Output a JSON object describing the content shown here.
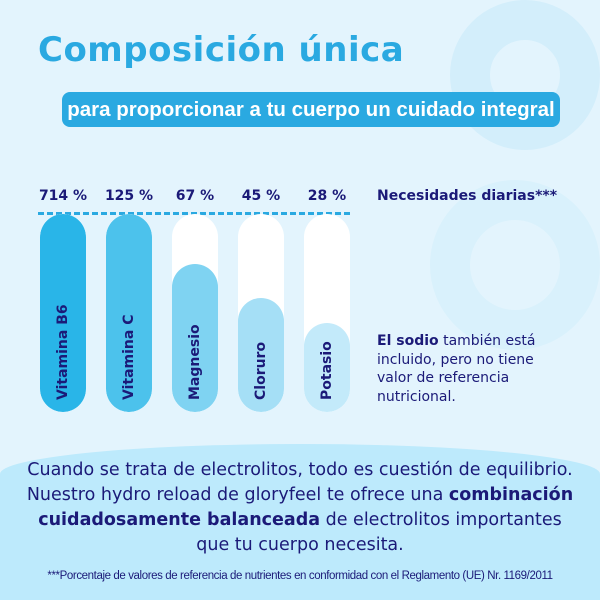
{
  "title": "Composición única",
  "subtitle": "para proporcionar a tu cuerpo un cuidado integral",
  "chart_data": {
    "type": "bar",
    "categories": [
      "Vitamina B6",
      "Vitamina C",
      "Magnesio",
      "Cloruro",
      "Potasio"
    ],
    "values": [
      714,
      125,
      67,
      45,
      28
    ],
    "value_labels": [
      "714 %",
      "125 %",
      "67 %",
      "45 %",
      "28 %"
    ],
    "reference_line": 100,
    "reference_label": "Necesidades diarias***",
    "colors": [
      "#29b5e8",
      "#4cc2ec",
      "#7fd3f2",
      "#a5dff6",
      "#c3eafa"
    ]
  },
  "note": {
    "bold": "El sodio",
    "text": " también está incluido, pero no tiene valor de referencia nutricional."
  },
  "body": {
    "part1": "Cuando se trata de electrolitos, todo es cuestión de equilibrio. Nuestro hydro reload de gloryfeel te ofrece una ",
    "bold": "combinación cuidadosamente balanceada",
    "part2": " de electrolitos importantes que tu cuerpo necesita."
  },
  "footnote": "***Porcentaje de valores de referencia de nutrientes en conformidad con el Reglamento (UE) Nr. 1169/2011"
}
